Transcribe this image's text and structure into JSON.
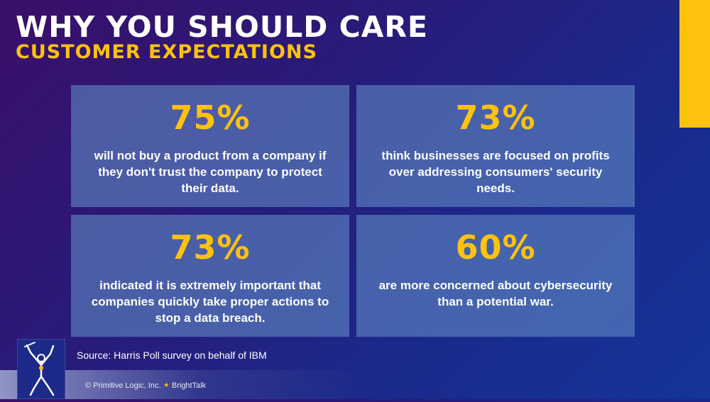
{
  "header": {
    "title": "WHY YOU SHOULD CARE",
    "subtitle": "CUSTOMER EXPECTATIONS"
  },
  "stats": [
    {
      "value": "75%",
      "description": "will not buy a product from a company if they don't trust the company to protect their data."
    },
    {
      "value": "73%",
      "description": "think businesses are focused on profits over addressing consumers' security needs."
    },
    {
      "value": "73%",
      "description": "indicated it is extremely important that companies quickly take proper actions to stop a data breach."
    },
    {
      "value": "60%",
      "description": "are more concerned about cybersecurity than a potential war."
    }
  ],
  "source": "Source: Harris Poll survey on behalf of IBM",
  "footer": {
    "copyright_left": "© Primitive Logic, Inc.",
    "separator": "✦",
    "copyright_right": "BrightTalk"
  },
  "colors": {
    "accent": "#ffc20e",
    "background_start": "#3a0f6a",
    "background_end": "#14349a",
    "card": "#6088c4"
  },
  "icons": {
    "logo": "primitive-logic-figure-logo"
  }
}
